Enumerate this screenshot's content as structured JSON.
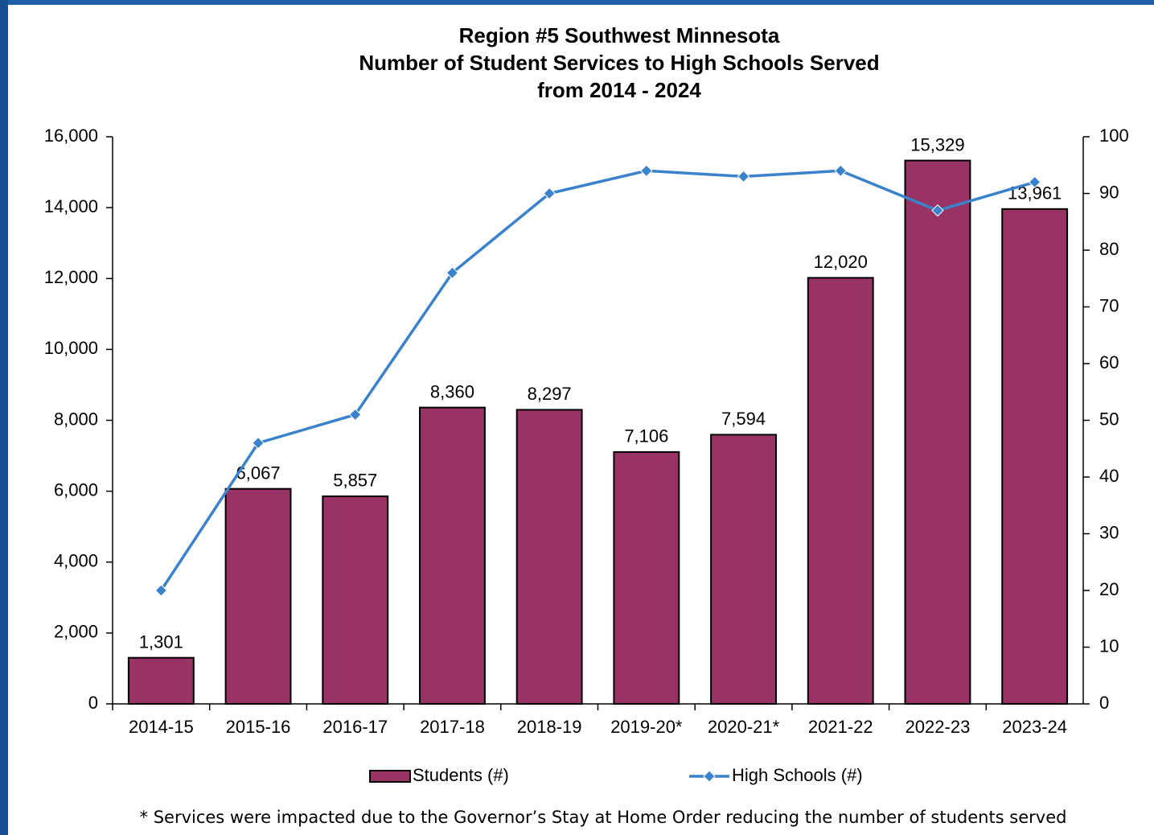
{
  "chart_data": {
    "type": "combo",
    "title": [
      "Region #5 Southwest Minnesota",
      "Number of Student Services to High Schools Served",
      "from 2014 - 2024"
    ],
    "categories": [
      "2014-15",
      "2015-16",
      "2016-17",
      "2017-18",
      "2018-19",
      "2019-20*",
      "2020-21*",
      "2021-22",
      "2022-23",
      "2023-24"
    ],
    "series": [
      {
        "name": "Students (#)",
        "type": "bar",
        "color": "#993366",
        "values": [
          1301,
          6067,
          5857,
          8360,
          8297,
          7106,
          7594,
          12020,
          15329,
          13961
        ],
        "value_labels": [
          "1,301",
          "6,067",
          "5,857",
          "8,360",
          "8,297",
          "7,106",
          "7,594",
          "12,020",
          "15,329",
          "13,961"
        ]
      },
      {
        "name": "High Schools (#)",
        "type": "line",
        "color": "#3b82cc",
        "axis": "y2",
        "values": [
          20,
          46,
          51,
          76,
          90,
          94,
          93,
          94,
          87,
          92
        ]
      }
    ],
    "ylim": [
      0,
      16000
    ],
    "yticks": [
      0,
      {
        "value": 2000,
        "label": "2,000"
      },
      {
        "value": 4000,
        "label": "4,000"
      },
      {
        "value": 6000,
        "label": "6,000"
      },
      {
        "value": 8000,
        "label": "8,000"
      },
      {
        "value": 10000,
        "label": "10,000"
      },
      {
        "value": 12000,
        "label": "12,000"
      },
      {
        "value": 14000,
        "label": "14,000"
      },
      {
        "value": 16000,
        "label": "16,000"
      }
    ],
    "y2lim": [
      0,
      100
    ],
    "y2ticks": [
      0,
      10,
      20,
      30,
      40,
      50,
      60,
      70,
      80,
      90,
      100
    ],
    "grid": false,
    "legend": "bottom",
    "footnote": "* Services were impacted due to the Governor’s Stay at Home Order reducing the number of students served"
  }
}
